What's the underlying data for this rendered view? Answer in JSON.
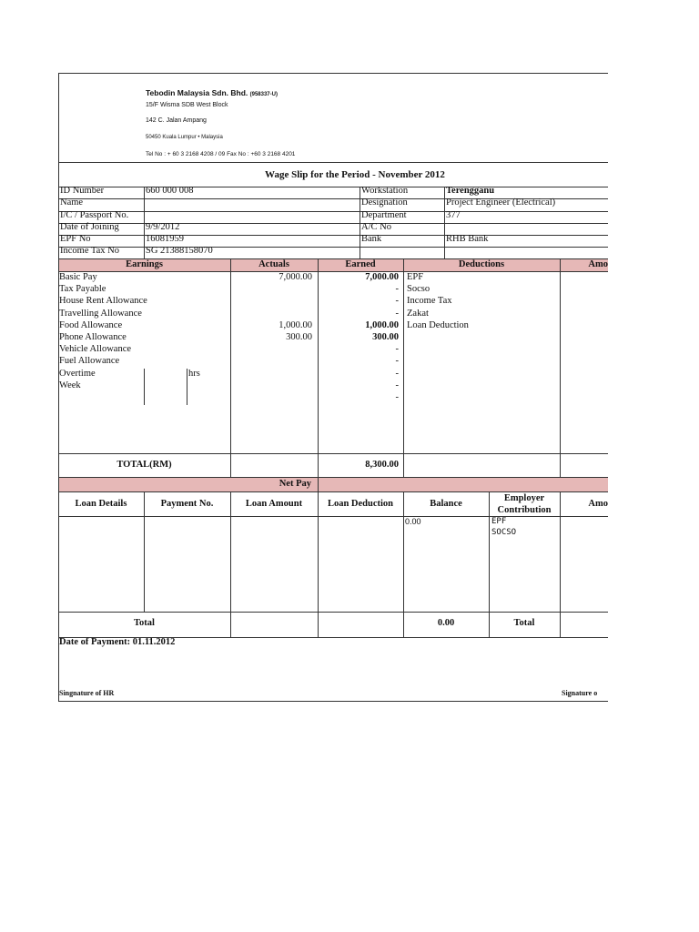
{
  "company": {
    "name": "Tebodin Malaysia Sdn. Bhd.",
    "reg": "(958337-U)",
    "address1": "15/F Wisma SDB West Block",
    "address2": "142 C. Jalan Ampang",
    "address3": "50450 Kuala Lumpur • Malaysia",
    "contact": "Tel No : + 60 3 2168 4208 / 09  Fax No : +60 3 2168 4201"
  },
  "title": "Wage Slip for the Period - November 2012",
  "info_left": [
    {
      "label": "ID Number",
      "value": "660 000 008"
    },
    {
      "label": "Name",
      "value": ""
    },
    {
      "label": "I/C  / Passport No.",
      "value": ""
    },
    {
      "label": "Date of Joining",
      "value": "9/9/2012"
    },
    {
      "label": "EPF No",
      "value": "16081959"
    },
    {
      "label": "Income Tax No",
      "value": "SG 21388158070"
    }
  ],
  "info_right": [
    {
      "label": "Workstation",
      "value": "Terengganu"
    },
    {
      "label": "Designation",
      "value": "Project Engineer (Electrical)"
    },
    {
      "label": "Department",
      "value": "377"
    },
    {
      "label": "A/C No",
      "value": ""
    },
    {
      "label": "Bank",
      "value": "RHB Bank"
    },
    {
      "label": "",
      "value": ""
    }
  ],
  "earnings_headers": {
    "earnings": "Earnings",
    "actuals": "Actuals",
    "earned": "Earned",
    "deductions": "Deductions",
    "amount": "Amo"
  },
  "earnings": [
    {
      "label": "Basic Pay",
      "actual": "7,000.00",
      "earned": "7,000.00"
    },
    {
      "label": "Tax Payable",
      "actual": "",
      "earned": "-"
    },
    {
      "label": "House Rent Allowance",
      "actual": "",
      "earned": "-"
    },
    {
      "label": "Travelling Allowance",
      "actual": "",
      "earned": "-"
    },
    {
      "label": "Food Allowance",
      "actual": "1,000.00",
      "earned": "1,000.00"
    },
    {
      "label": "Phone Allowance",
      "actual": "300.00",
      "earned": "300.00"
    },
    {
      "label": "Vehicle Allowance",
      "actual": "",
      "earned": "-"
    },
    {
      "label": "Fuel Allowance",
      "actual": "",
      "earned": "-"
    },
    {
      "label": "Overtime",
      "actual": "",
      "earned": "-"
    },
    {
      "label": "Week",
      "actual": "",
      "earned": "-"
    },
    {
      "label": "",
      "actual": "",
      "earned": "-"
    }
  ],
  "hrs": "hrs",
  "deductions": [
    "EPF",
    "Socso",
    "Income Tax",
    "Zakat",
    "Loan Deduction"
  ],
  "total_label": "TOTAL(RM)",
  "total_earned": "8,300.00",
  "net_pay": "Net Pay",
  "loan_headers": [
    "Loan Details",
    "Payment No.",
    "Loan Amount",
    "Loan Deduction",
    "Balance",
    "Employer Contribution",
    "Amo"
  ],
  "balance": "0.00",
  "employer_items": [
    "EPF",
    "SOCSO"
  ],
  "loan_total_label": "Total",
  "loan_total_balance": "0.00",
  "employer_total_label": "Total",
  "date_of_payment": "Date of Payment: 01.11.2012",
  "sig_hr": "Singnature of HR",
  "sig_other": "Signature o",
  "colors": {
    "header_fill": "#e6b8b7"
  }
}
